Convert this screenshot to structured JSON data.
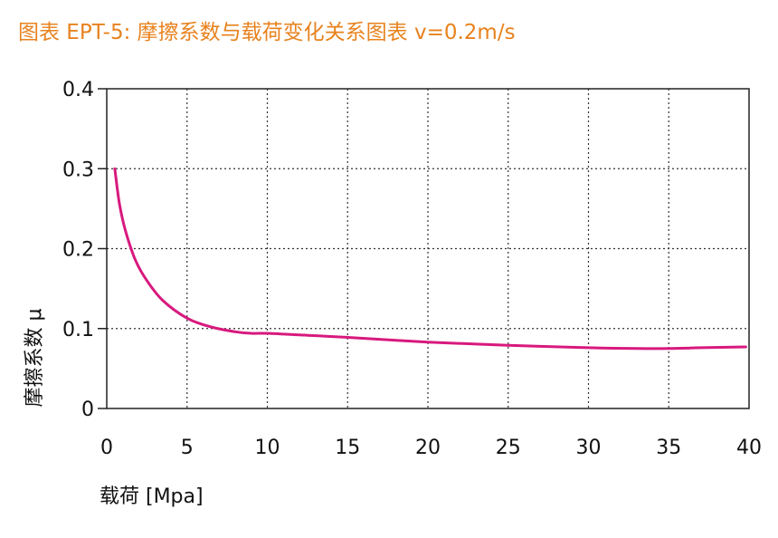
{
  "chart_data": {
    "type": "line",
    "title": "图表 EPT-5: 摩擦系数与载荷变化关系图表 v=0.2m/s",
    "xlabel": "载荷  [Mpa]",
    "ylabel": "摩擦系数 μ",
    "xlim": [
      0,
      40
    ],
    "ylim": [
      0,
      0.4
    ],
    "x_ticks": [
      "0",
      "5",
      "10",
      "15",
      "20",
      "25",
      "30",
      "35",
      "40"
    ],
    "y_ticks": [
      "0",
      "0.1",
      "0.2",
      "0.3",
      "0.4"
    ],
    "grid": true,
    "series": [
      {
        "color": "#d8197e",
        "x": [
          0.5,
          0.8,
          1.2,
          1.8,
          2.5,
          3.5,
          5,
          6.5,
          8,
          9,
          10,
          12,
          15,
          20,
          25,
          30,
          33,
          35,
          37,
          39.8
        ],
        "y": [
          0.3,
          0.255,
          0.22,
          0.185,
          0.16,
          0.135,
          0.113,
          0.102,
          0.096,
          0.094,
          0.094,
          0.092,
          0.089,
          0.083,
          0.079,
          0.076,
          0.075,
          0.075,
          0.076,
          0.077
        ]
      }
    ]
  }
}
